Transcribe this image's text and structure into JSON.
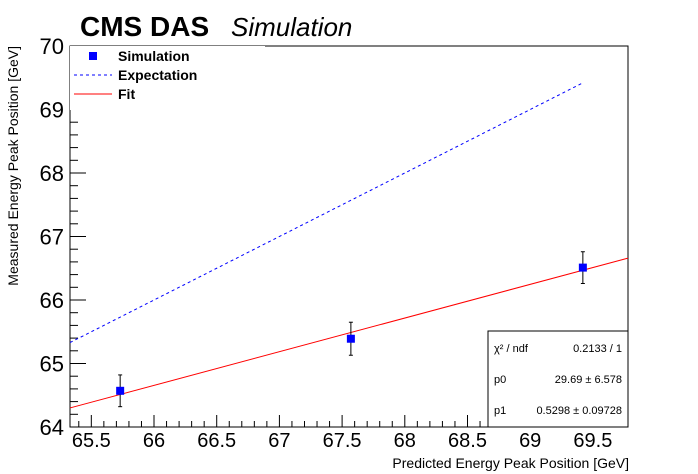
{
  "header": {
    "experiment": "CMS DAS",
    "label": "Simulation"
  },
  "chart_data": {
    "type": "scatter",
    "xlabel": "Predicted Energy Peak Position [GeV]",
    "ylabel": "Measured Energy Peak Position [GeV]",
    "xlim": [
      65.33,
      69.78
    ],
    "ylim": [
      64,
      70
    ],
    "x_ticks": [
      65.5,
      66,
      66.5,
      67,
      67.5,
      68,
      68.5,
      69,
      69.5
    ],
    "x_tick_labels": [
      "65.5",
      "66",
      "66.5",
      "67",
      "67.5",
      "68",
      "68.5",
      "69",
      "69.5"
    ],
    "y_ticks": [
      64,
      65,
      66,
      67,
      68,
      69,
      70
    ],
    "y_tick_labels": [
      "64",
      "65",
      "66",
      "67",
      "68",
      "69",
      "70"
    ],
    "grid": false,
    "series": [
      {
        "name": "Simulation",
        "kind": "points",
        "color": "#0000ff",
        "x": [
          65.73,
          67.57,
          69.42
        ],
        "y": [
          64.57,
          65.39,
          66.51
        ],
        "yerr": [
          0.25,
          0.26,
          0.25
        ]
      },
      {
        "name": "Expectation",
        "kind": "dashed-line",
        "color": "#0000ff",
        "x": [
          65.33,
          69.42
        ],
        "y": [
          65.33,
          69.42
        ]
      },
      {
        "name": "Fit",
        "kind": "line",
        "color": "#ff0000",
        "x": [
          65.33,
          69.78
        ],
        "y": [
          64.3,
          66.66
        ]
      }
    ],
    "legend_position": "top-left",
    "stats_box": {
      "position": "bottom-right",
      "rows": [
        {
          "label": "χ² / ndf",
          "value": "0.2133 / 1"
        },
        {
          "label": "p0",
          "value": "29.69 ± 6.578"
        },
        {
          "label": "p1",
          "value": "0.5298 ± 0.09728"
        }
      ]
    }
  }
}
